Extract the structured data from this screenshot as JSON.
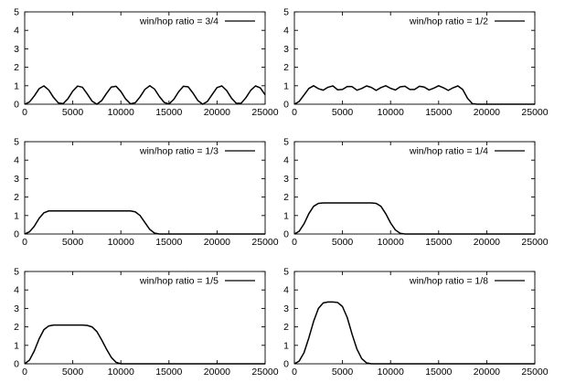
{
  "chart_data": [
    {
      "type": "line",
      "legend_position": "top-right",
      "grid": false,
      "xlim": [
        0,
        25000
      ],
      "ylim": [
        0,
        5
      ],
      "xticks": [
        0,
        5000,
        10000,
        15000,
        20000,
        25000
      ],
      "yticks": [
        0,
        1,
        2,
        3,
        4,
        5
      ],
      "series": [
        {
          "name": "win/hop ratio = 3/4",
          "x": [
            0,
            500,
            1000,
            1500,
            2000,
            2500,
            3000,
            3500,
            4000,
            4500,
            5000,
            5500,
            6000,
            6500,
            7000,
            7500,
            8000,
            8500,
            9000,
            9500,
            10000,
            10500,
            11000,
            11500,
            12000,
            12500,
            13000,
            13500,
            14000,
            14500,
            15000,
            15500,
            16000,
            16500,
            17000,
            17500,
            18000,
            18500,
            19000,
            19500,
            20000,
            20500,
            21000,
            21500,
            22000,
            22500,
            23000,
            23500,
            24000,
            24500,
            25000
          ],
          "y": [
            0.0,
            0.12,
            0.45,
            0.84,
            0.99,
            0.77,
            0.37,
            0.07,
            0.03,
            0.3,
            0.71,
            0.98,
            0.92,
            0.56,
            0.17,
            0.0,
            0.19,
            0.58,
            0.93,
            0.97,
            0.69,
            0.28,
            0.02,
            0.08,
            0.4,
            0.8,
            1.0,
            0.82,
            0.42,
            0.1,
            0.01,
            0.26,
            0.67,
            0.97,
            0.94,
            0.6,
            0.2,
            0.0,
            0.15,
            0.53,
            0.9,
            0.99,
            0.74,
            0.33,
            0.05,
            0.05,
            0.35,
            0.75,
            0.99,
            0.88,
            0.51
          ]
        }
      ]
    },
    {
      "type": "line",
      "legend_position": "top-right",
      "grid": false,
      "xlim": [
        0,
        25000
      ],
      "ylim": [
        0,
        5
      ],
      "xticks": [
        0,
        5000,
        10000,
        15000,
        20000,
        25000
      ],
      "yticks": [
        0,
        1,
        2,
        3,
        4,
        5
      ],
      "series": [
        {
          "name": "win/hop ratio = 1/2",
          "x": [
            0,
            500,
            1000,
            1500,
            2000,
            2500,
            3000,
            3500,
            4000,
            4500,
            5000,
            5500,
            6000,
            6500,
            7000,
            7500,
            8000,
            8500,
            9000,
            9500,
            10000,
            10500,
            11000,
            11500,
            12000,
            12500,
            13000,
            13500,
            14000,
            14500,
            15000,
            15500,
            16000,
            16500,
            17000,
            17500,
            18000,
            18500,
            19000,
            19500,
            20000,
            20500,
            21000,
            21500,
            22000,
            22500,
            23000,
            23500,
            24000,
            24500,
            25000
          ],
          "y": [
            0.0,
            0.15,
            0.5,
            0.85,
            1.0,
            0.84,
            0.76,
            0.92,
            0.99,
            0.78,
            0.8,
            0.96,
            0.95,
            0.76,
            0.85,
            0.99,
            0.91,
            0.75,
            0.9,
            1.0,
            0.86,
            0.77,
            0.94,
            0.97,
            0.8,
            0.8,
            0.97,
            0.93,
            0.77,
            0.87,
            1.0,
            0.89,
            0.75,
            0.89,
            0.99,
            0.8,
            0.32,
            0.03,
            0.0,
            0.0,
            0.0,
            0.0,
            0.0,
            0.0,
            0.0,
            0.0,
            0.0,
            0.0,
            0.0,
            0.0,
            0.0
          ]
        }
      ]
    },
    {
      "type": "line",
      "legend_position": "top-right",
      "grid": false,
      "xlim": [
        0,
        25000
      ],
      "ylim": [
        0,
        5
      ],
      "xticks": [
        0,
        5000,
        10000,
        15000,
        20000,
        25000
      ],
      "yticks": [
        0,
        1,
        2,
        3,
        4,
        5
      ],
      "series": [
        {
          "name": "win/hop ratio = 1/3",
          "x": [
            0,
            500,
            1000,
            1500,
            2000,
            2500,
            3000,
            4000,
            5000,
            6000,
            7000,
            8000,
            9000,
            10000,
            11000,
            11500,
            12000,
            12500,
            13000,
            13500,
            14000,
            15000,
            16000,
            18000,
            20000,
            22000,
            25000
          ],
          "y": [
            0.0,
            0.12,
            0.42,
            0.85,
            1.15,
            1.25,
            1.25,
            1.25,
            1.25,
            1.25,
            1.25,
            1.25,
            1.25,
            1.25,
            1.25,
            1.2,
            1.0,
            0.62,
            0.25,
            0.05,
            0.0,
            0.0,
            0.0,
            0.0,
            0.0,
            0.0,
            0.0
          ]
        }
      ]
    },
    {
      "type": "line",
      "legend_position": "top-right",
      "grid": false,
      "xlim": [
        0,
        25000
      ],
      "ylim": [
        0,
        5
      ],
      "xticks": [
        0,
        5000,
        10000,
        15000,
        20000,
        25000
      ],
      "yticks": [
        0,
        1,
        2,
        3,
        4,
        5
      ],
      "series": [
        {
          "name": "win/hop ratio = 1/4",
          "x": [
            0,
            500,
            1000,
            1500,
            2000,
            2500,
            3000,
            4000,
            5000,
            6000,
            7000,
            8000,
            8500,
            9000,
            9500,
            10000,
            10500,
            11000,
            11500,
            12000,
            13000,
            14000,
            16000,
            18000,
            20000,
            22000,
            25000
          ],
          "y": [
            0.0,
            0.15,
            0.55,
            1.1,
            1.5,
            1.66,
            1.68,
            1.68,
            1.68,
            1.68,
            1.68,
            1.68,
            1.66,
            1.5,
            1.1,
            0.6,
            0.22,
            0.04,
            0.0,
            0.0,
            0.0,
            0.0,
            0.0,
            0.0,
            0.0,
            0.0,
            0.0
          ]
        }
      ]
    },
    {
      "type": "line",
      "legend_position": "top-right",
      "grid": false,
      "xlim": [
        0,
        25000
      ],
      "ylim": [
        0,
        5
      ],
      "xticks": [
        0,
        5000,
        10000,
        15000,
        20000,
        25000
      ],
      "yticks": [
        0,
        1,
        2,
        3,
        4,
        5
      ],
      "series": [
        {
          "name": "win/hop ratio = 1/5",
          "x": [
            0,
            500,
            1000,
            1500,
            2000,
            2500,
            3000,
            4000,
            5000,
            6000,
            6500,
            7000,
            7500,
            8000,
            8500,
            9000,
            9500,
            10000,
            11000,
            12000,
            14000,
            16000,
            18000,
            20000,
            22000,
            25000
          ],
          "y": [
            0.0,
            0.2,
            0.7,
            1.35,
            1.85,
            2.05,
            2.1,
            2.1,
            2.1,
            2.1,
            2.08,
            2.0,
            1.75,
            1.3,
            0.8,
            0.35,
            0.08,
            0.0,
            0.0,
            0.0,
            0.0,
            0.0,
            0.0,
            0.0,
            0.0,
            0.0
          ]
        }
      ]
    },
    {
      "type": "line",
      "legend_position": "top-right",
      "grid": false,
      "xlim": [
        0,
        25000
      ],
      "ylim": [
        0,
        5
      ],
      "xticks": [
        0,
        5000,
        10000,
        15000,
        20000,
        25000
      ],
      "yticks": [
        0,
        1,
        2,
        3,
        4,
        5
      ],
      "series": [
        {
          "name": "win/hop ratio = 1/8",
          "x": [
            0,
            500,
            1000,
            1500,
            2000,
            2500,
            3000,
            3500,
            4000,
            4500,
            5000,
            5500,
            6000,
            6500,
            7000,
            7500,
            8000,
            9000,
            10000,
            12000,
            14000,
            16000,
            18000,
            20000,
            22000,
            25000
          ],
          "y": [
            0.0,
            0.15,
            0.6,
            1.4,
            2.3,
            3.0,
            3.3,
            3.35,
            3.35,
            3.32,
            3.1,
            2.5,
            1.6,
            0.8,
            0.28,
            0.05,
            0.0,
            0.0,
            0.0,
            0.0,
            0.0,
            0.0,
            0.0,
            0.0,
            0.0,
            0.0
          ]
        }
      ]
    }
  ]
}
